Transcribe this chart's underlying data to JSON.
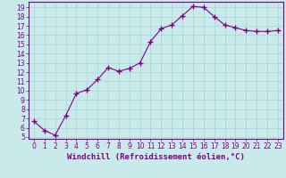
{
  "x": [
    0,
    1,
    2,
    3,
    4,
    5,
    6,
    7,
    8,
    9,
    10,
    11,
    12,
    13,
    14,
    15,
    16,
    17,
    18,
    19,
    20,
    21,
    22,
    23
  ],
  "y": [
    6.7,
    5.7,
    5.2,
    7.3,
    9.7,
    10.1,
    11.2,
    12.5,
    12.1,
    12.4,
    13.0,
    15.3,
    16.7,
    17.1,
    18.1,
    19.1,
    19.0,
    18.0,
    17.1,
    16.8,
    16.5,
    16.4,
    16.4,
    16.5
  ],
  "line_color": "#800080",
  "marker": "+",
  "marker_size": 4,
  "bg_color": "#c8eaea",
  "grid_color": "#aad4d4",
  "xlabel": "Windchill (Refroidissement éolien,°C)",
  "xlabel_color": "#800080",
  "tick_color": "#800080",
  "ylim": [
    4.8,
    19.6
  ],
  "xlim": [
    -0.5,
    23.5
  ],
  "yticks": [
    5,
    6,
    7,
    8,
    9,
    10,
    11,
    12,
    13,
    14,
    15,
    16,
    17,
    18,
    19
  ],
  "xticks": [
    0,
    1,
    2,
    3,
    4,
    5,
    6,
    7,
    8,
    9,
    10,
    11,
    12,
    13,
    14,
    15,
    16,
    17,
    18,
    19,
    20,
    21,
    22,
    23
  ],
  "spine_color": "#800080",
  "axis_bg": "#c8eaea",
  "tick_fontsize": 5.5,
  "xlabel_fontsize": 6.5
}
